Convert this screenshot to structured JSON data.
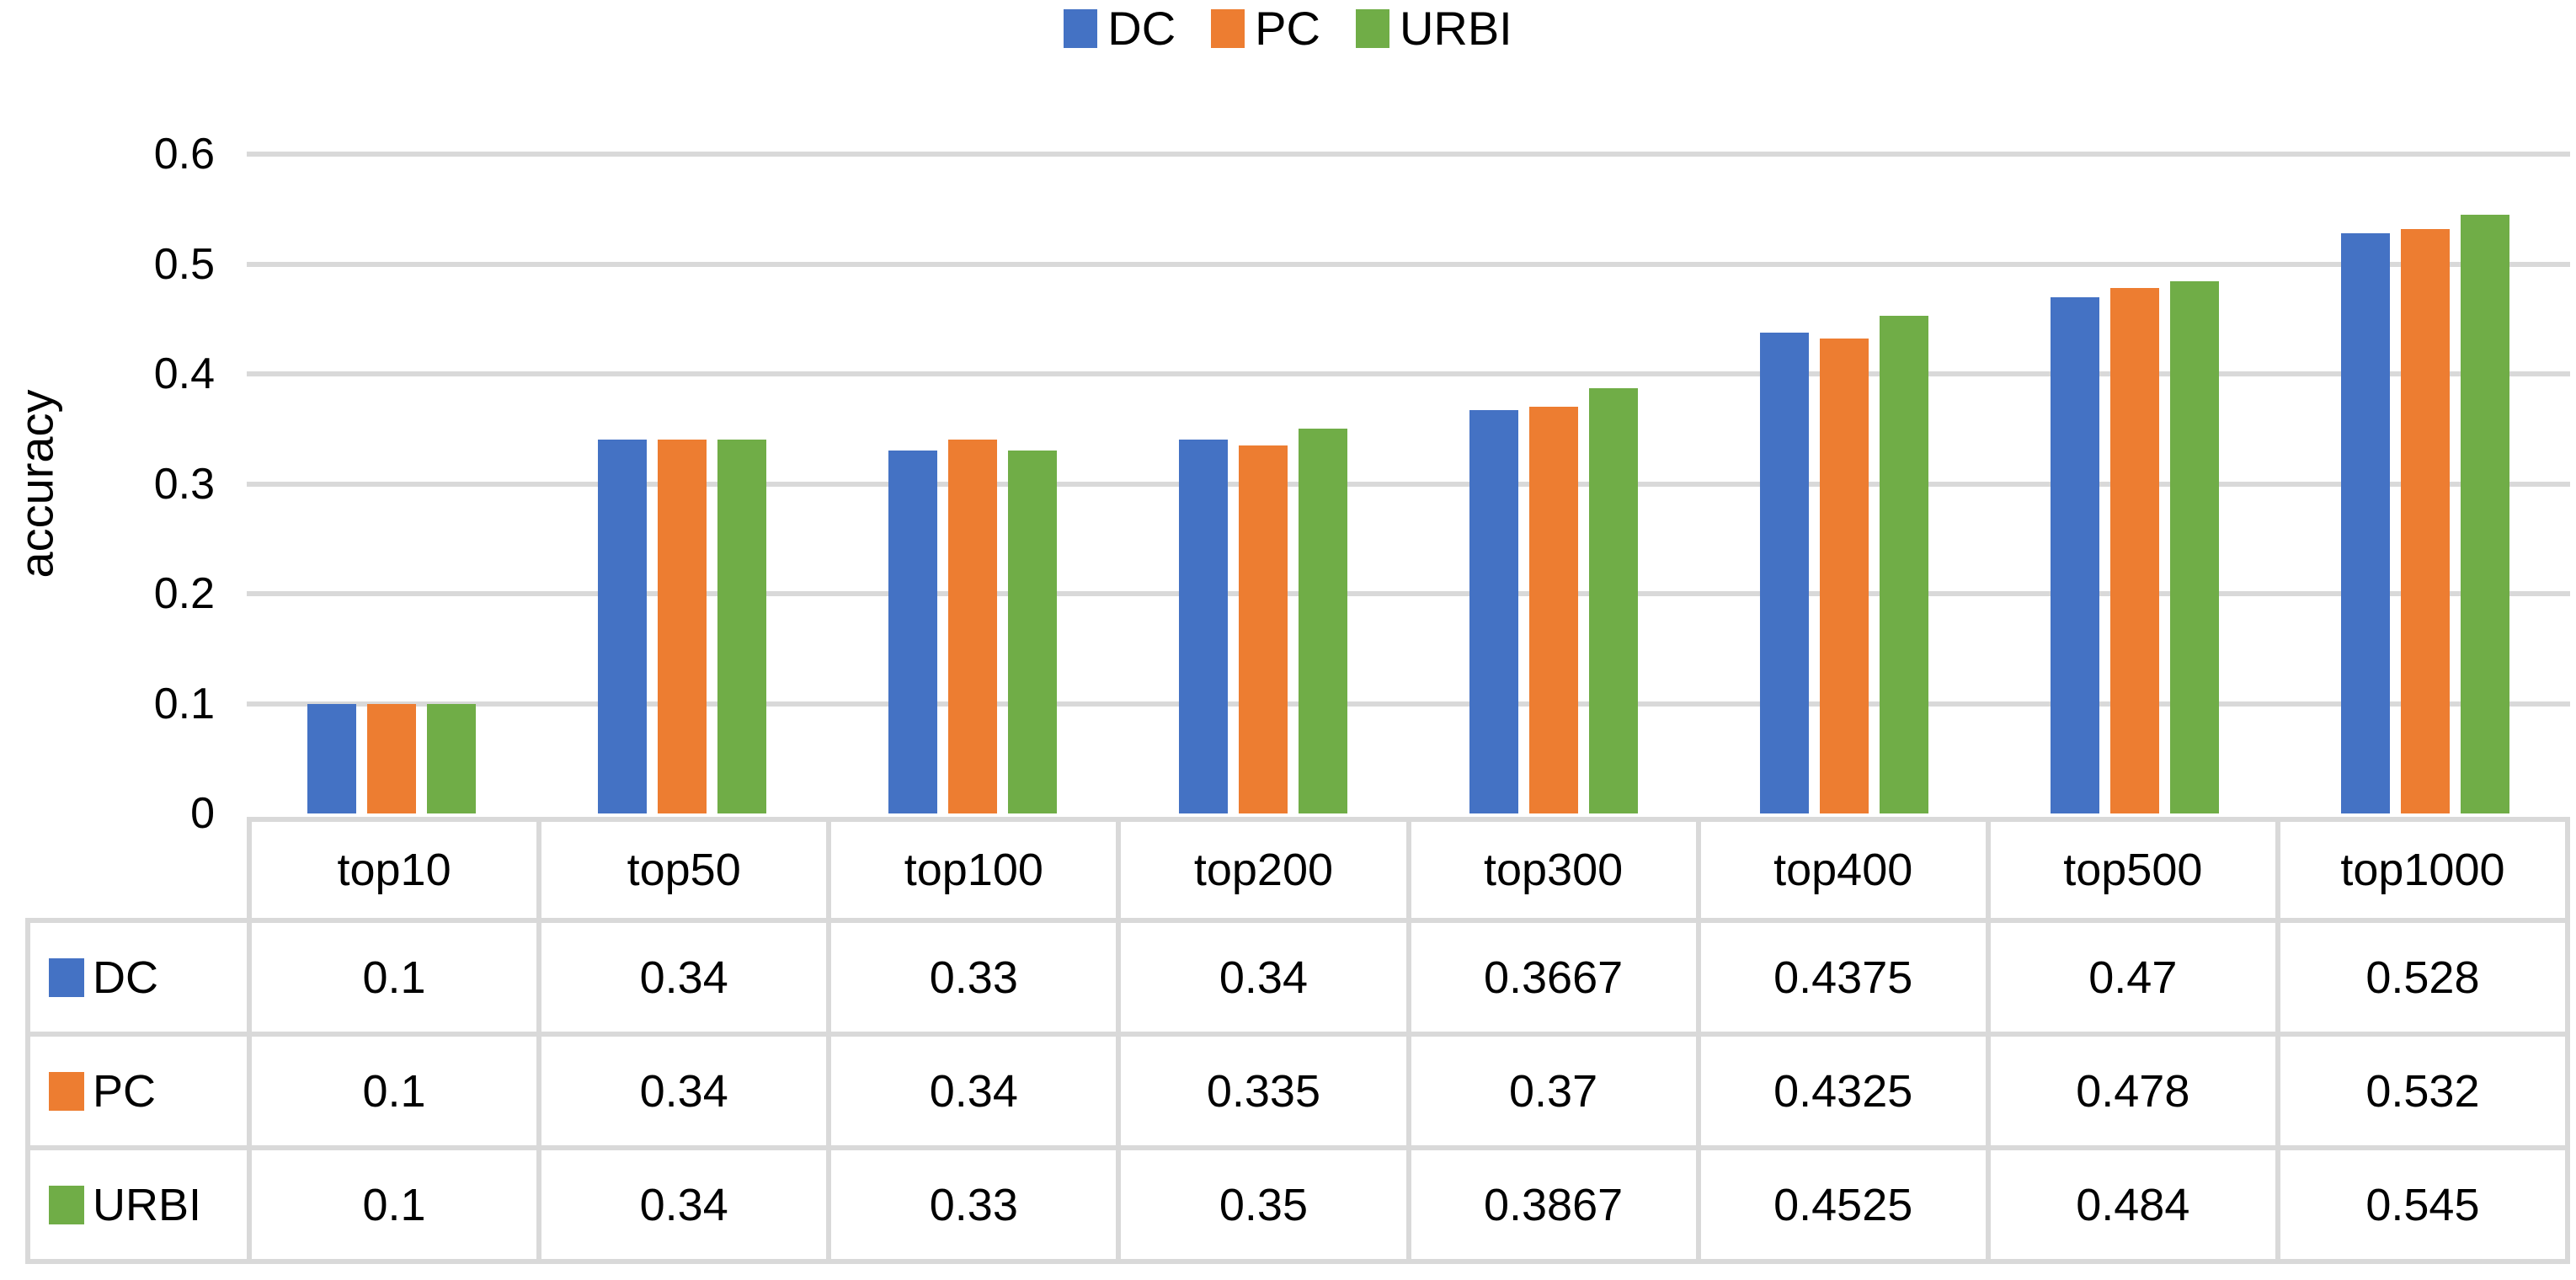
{
  "chart_data": {
    "type": "bar",
    "title": "",
    "ylabel": "accuracy",
    "xlabel": "",
    "categories": [
      "top10",
      "top50",
      "top100",
      "top200",
      "top300",
      "top400",
      "top500",
      "top1000"
    ],
    "series": [
      {
        "name": "DC",
        "color": "#4472C4",
        "values": [
          0.1,
          0.34,
          0.33,
          0.34,
          0.3667,
          0.4375,
          0.47,
          0.528
        ]
      },
      {
        "name": "PC",
        "color": "#ED7D31",
        "values": [
          0.1,
          0.34,
          0.34,
          0.335,
          0.37,
          0.4325,
          0.478,
          0.532
        ]
      },
      {
        "name": "URBI",
        "color": "#70AD47",
        "values": [
          0.1,
          0.34,
          0.33,
          0.35,
          0.3867,
          0.4525,
          0.484,
          0.545
        ]
      }
    ],
    "ylim": [
      0,
      0.6
    ],
    "yticks": [
      "0",
      "0.1",
      "0.2",
      "0.3",
      "0.4",
      "0.5",
      "0.6"
    ],
    "grid": true,
    "legend_position": "top",
    "legend_labels": [
      "DC",
      "PC",
      "URBI"
    ],
    "data_table_shown": true
  },
  "colors": {
    "gridline": "#D9D9D9",
    "table_border": "#D9D9D9",
    "background": "#FFFFFF",
    "text": "#000000"
  }
}
